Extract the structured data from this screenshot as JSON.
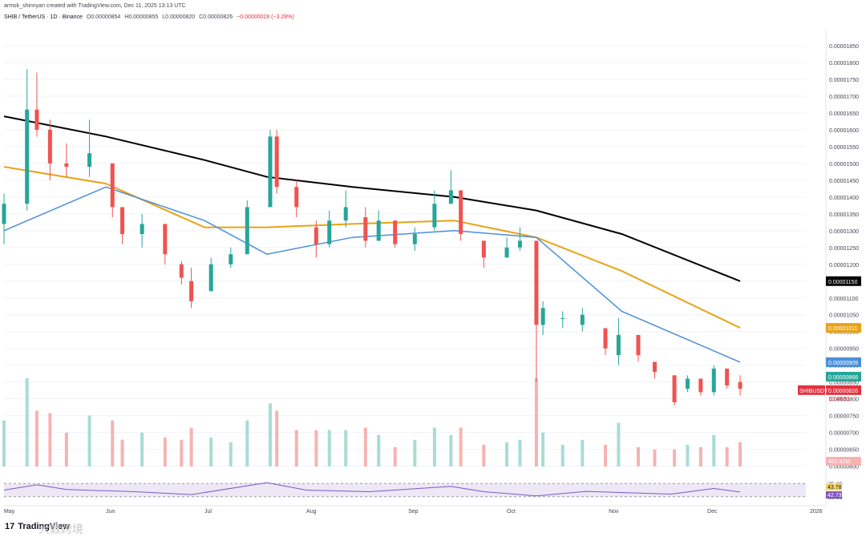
{
  "header": {
    "author_line": "armsk_shinnyan created with TradingView.com, Dec 11, 2025 13:13 UTC",
    "symbol": "SHIB / TetherUS · 1D · Binance",
    "open": "O0.00000854",
    "high": "H0.00000855",
    "low": "L0.00000820",
    "close": "C0.00000826",
    "change": "−0.00000028 (−3.28%)"
  },
  "branding": {
    "logo_text": "TradingView",
    "logo_mark": "17",
    "watermark": "大数跨境"
  },
  "price_axis": {
    "tick_labels": [
      "0.00001850",
      "0.00001800",
      "0.00001750",
      "0.00001700",
      "0.00001650",
      "0.00001600",
      "0.00001550",
      "0.00001500",
      "0.00001450",
      "0.00001400",
      "0.00001350",
      "0.00001300",
      "0.00001250",
      "0.00001200",
      "0.00001150",
      "0.00001100",
      "0.00001050",
      "0.00001000",
      "0.00000950",
      "0.00000900",
      "0.00000850",
      "0.00000800",
      "0.00000750",
      "0.00000700",
      "0.00000650",
      "0.00000600"
    ],
    "labels": [
      {
        "text": "0.00001150",
        "color": "#000000",
        "price": 1.15e-05
      },
      {
        "text": "0.00001011",
        "color": "#e8a317",
        "price": 1.011e-05
      },
      {
        "text": "0.00000909",
        "color": "#4a90d9",
        "price": 9.09e-06
      },
      {
        "text": "0.00000866",
        "color": "#26a69a",
        "price": 8.66e-06
      },
      {
        "text": "0.00000826",
        "color": "#e0323f",
        "price": 8.26e-06
      }
    ],
    "symbol_tag": "SHIBUSDT",
    "countdown": "10:46:51",
    "volume_label": "461.62M"
  },
  "rsi_axis": {
    "tick_labels": [
      "75.00",
      "25.00"
    ],
    "values": [
      "43.78",
      "42.73"
    ]
  },
  "time_axis": {
    "labels": [
      "May",
      "Jun",
      "Jul",
      "Aug",
      "Sep",
      "Oct",
      "Nov",
      "Dec",
      "2026"
    ]
  },
  "colors": {
    "up": "#26a69a",
    "down": "#ef5350",
    "ema200": "#000000",
    "ema100": "#e8a317",
    "ema50": "#4a90d9",
    "ema20": "#a5c9a5",
    "rsi": "#7e57c2",
    "rsi_ma": "#f5d76e"
  },
  "chart_data": {
    "type": "candlestick",
    "x_range": [
      "2025-05-01",
      "2025-12-31"
    ],
    "price_range": [
      5.8e-06,
      1.9e-05
    ],
    "candles_by_date": [
      [
        "2025-05-01",
        1.32e-05,
        1.41e-05,
        1.26e-05,
        1.38e-05
      ],
      [
        "2025-05-08",
        1.38e-05,
        1.78e-05,
        1.36e-05,
        1.66e-05
      ],
      [
        "2025-05-11",
        1.66e-05,
        1.77e-05,
        1.58e-05,
        1.6e-05
      ],
      [
        "2025-05-15",
        1.6e-05,
        1.63e-05,
        1.45e-05,
        1.5e-05
      ],
      [
        "2025-05-20",
        1.5e-05,
        1.56e-05,
        1.46e-05,
        1.49e-05
      ],
      [
        "2025-05-27",
        1.49e-05,
        1.63e-05,
        1.46e-05,
        1.53e-05
      ],
      [
        "2025-06-03",
        1.5e-05,
        1.49e-05,
        1.34e-05,
        1.37e-05
      ],
      [
        "2025-06-06",
        1.37e-05,
        1.33e-05,
        1.26e-05,
        1.29e-05
      ],
      [
        "2025-06-12",
        1.29e-05,
        1.35e-05,
        1.25e-05,
        1.32e-05
      ],
      [
        "2025-06-19",
        1.32e-05,
        1.28e-05,
        1.2e-05,
        1.23e-05
      ],
      [
        "2025-06-24",
        1.2e-05,
        1.21e-05,
        1.14e-05,
        1.16e-05
      ],
      [
        "2025-06-27",
        1.15e-05,
        1.19e-05,
        1.07e-05,
        1.09e-05
      ],
      [
        "2025-07-03",
        1.12e-05,
        1.22e-05,
        1.14e-05,
        1.2e-05
      ],
      [
        "2025-07-09",
        1.2e-05,
        1.25e-05,
        1.19e-05,
        1.23e-05
      ],
      [
        "2025-07-14",
        1.23e-05,
        1.39e-05,
        1.24e-05,
        1.37e-05
      ],
      [
        "2025-07-21",
        1.37e-05,
        1.6e-05,
        1.38e-05,
        1.58e-05
      ],
      [
        "2025-07-23",
        1.58e-05,
        1.6e-05,
        1.41e-05,
        1.43e-05
      ],
      [
        "2025-07-29",
        1.43e-05,
        1.45e-05,
        1.34e-05,
        1.37e-05
      ],
      [
        "2025-08-04",
        1.31e-05,
        1.33e-05,
        1.22e-05,
        1.26e-05
      ],
      [
        "2025-08-08",
        1.26e-05,
        1.36e-05,
        1.25e-05,
        1.33e-05
      ],
      [
        "2025-08-13",
        1.33e-05,
        1.42e-05,
        1.31e-05,
        1.37e-05
      ],
      [
        "2025-08-19",
        1.34e-05,
        1.37e-05,
        1.25e-05,
        1.27e-05
      ],
      [
        "2025-08-23",
        1.27e-05,
        1.36e-05,
        1.27e-05,
        1.33e-05
      ],
      [
        "2025-08-28",
        1.33e-05,
        1.29e-05,
        1.25e-05,
        1.26e-05
      ],
      [
        "2025-09-03",
        1.26e-05,
        1.31e-05,
        1.24e-05,
        1.29e-05
      ],
      [
        "2025-09-09",
        1.31e-05,
        1.42e-05,
        1.3e-05,
        1.38e-05
      ],
      [
        "2025-09-14",
        1.38e-05,
        1.48e-05,
        1.39e-05,
        1.42e-05
      ],
      [
        "2025-09-17",
        1.42e-05,
        1.39e-05,
        1.27e-05,
        1.29e-05
      ],
      [
        "2025-09-24",
        1.27e-05,
        1.24e-05,
        1.19e-05,
        1.22e-05
      ],
      [
        "2025-10-01",
        1.22e-05,
        1.28e-05,
        1.22e-05,
        1.25e-05
      ],
      [
        "2025-10-05",
        1.25e-05,
        1.31e-05,
        1.24e-05,
        1.27e-05
      ],
      [
        "2025-10-10",
        1.27e-05,
        1.26e-05,
        8.5e-06,
        1.02e-05
      ],
      [
        "2025-10-12",
        1.02e-05,
        1.09e-05,
        9.9e-06,
        1.07e-05
      ],
      [
        "2025-10-18",
        1.04e-05,
        1.06e-05,
        1.01e-05,
        1.04e-05
      ],
      [
        "2025-10-24",
        1.02e-05,
        1.07e-05,
        1e-05,
        1.05e-05
      ],
      [
        "2025-10-31",
        1.01e-05,
        9.8e-06,
        9.3e-06,
        9.5e-06
      ],
      [
        "2025-11-04",
        9.3e-06,
        1.04e-05,
        9e-06,
        9.9e-06
      ],
      [
        "2025-11-10",
        9.9e-06,
        9.5e-06,
        9.1e-06,
        9.3e-06
      ],
      [
        "2025-11-15",
        9.1e-06,
        8.9e-06,
        8.6e-06,
        8.8e-06
      ],
      [
        "2025-11-21",
        8.7e-06,
        8.1e-06,
        7.8e-06,
        7.9e-06
      ],
      [
        "2025-11-25",
        8.3e-06,
        8.7e-06,
        8.2e-06,
        8.6e-06
      ],
      [
        "2025-11-29",
        8.6e-06,
        8.5e-06,
        8.1e-06,
        8.2e-06
      ],
      [
        "2025-12-03",
        8.2e-06,
        9e-06,
        8.1e-06,
        8.9e-06
      ],
      [
        "2025-12-07",
        8.9e-06,
        8.7e-06,
        8.3e-06,
        8.4e-06
      ],
      [
        "2025-12-11",
        8.5e-06,
        8.7e-06,
        8.1e-06,
        8.3e-06
      ]
    ],
    "ema200": [
      [
        "2025-05-01",
        1.64e-05
      ],
      [
        "2025-06-01",
        1.58e-05
      ],
      [
        "2025-07-01",
        1.51e-05
      ],
      [
        "2025-07-20",
        1.46e-05
      ],
      [
        "2025-08-15",
        1.43e-05
      ],
      [
        "2025-09-15",
        1.4e-05
      ],
      [
        "2025-10-10",
        1.36e-05
      ],
      [
        "2025-11-05",
        1.29e-05
      ],
      [
        "2025-12-11",
        1.15e-05
      ]
    ],
    "ema100": [
      [
        "2025-05-01",
        1.49e-05
      ],
      [
        "2025-06-01",
        1.44e-05
      ],
      [
        "2025-07-01",
        1.31e-05
      ],
      [
        "2025-07-20",
        1.31e-05
      ],
      [
        "2025-08-15",
        1.32e-05
      ],
      [
        "2025-09-15",
        1.33e-05
      ],
      [
        "2025-10-10",
        1.28e-05
      ],
      [
        "2025-11-05",
        1.18e-05
      ],
      [
        "2025-12-11",
        1.011e-05
      ]
    ],
    "ema50": [
      [
        "2025-05-01",
        1.3e-05
      ],
      [
        "2025-06-01",
        1.43e-05
      ],
      [
        "2025-07-01",
        1.33e-05
      ],
      [
        "2025-07-20",
        1.23e-05
      ],
      [
        "2025-08-15",
        1.28e-05
      ],
      [
        "2025-09-15",
        1.3e-05
      ],
      [
        "2025-10-10",
        1.28e-05
      ],
      [
        "2025-11-05",
        1.06e-05
      ],
      [
        "2025-12-11",
        9.09e-06
      ]
    ],
    "rsi_range": [
      0,
      100
    ],
    "rsi": [
      [
        "2025-05-01",
        50
      ],
      [
        "2025-05-11",
        70
      ],
      [
        "2025-05-20",
        52
      ],
      [
        "2025-06-10",
        44
      ],
      [
        "2025-06-27",
        33
      ],
      [
        "2025-07-20",
        78
      ],
      [
        "2025-08-01",
        50
      ],
      [
        "2025-08-20",
        44
      ],
      [
        "2025-09-14",
        64
      ],
      [
        "2025-09-24",
        44
      ],
      [
        "2025-10-10",
        28
      ],
      [
        "2025-10-25",
        45
      ],
      [
        "2025-11-20",
        35
      ],
      [
        "2025-12-03",
        56
      ],
      [
        "2025-12-11",
        42.73
      ]
    ]
  }
}
